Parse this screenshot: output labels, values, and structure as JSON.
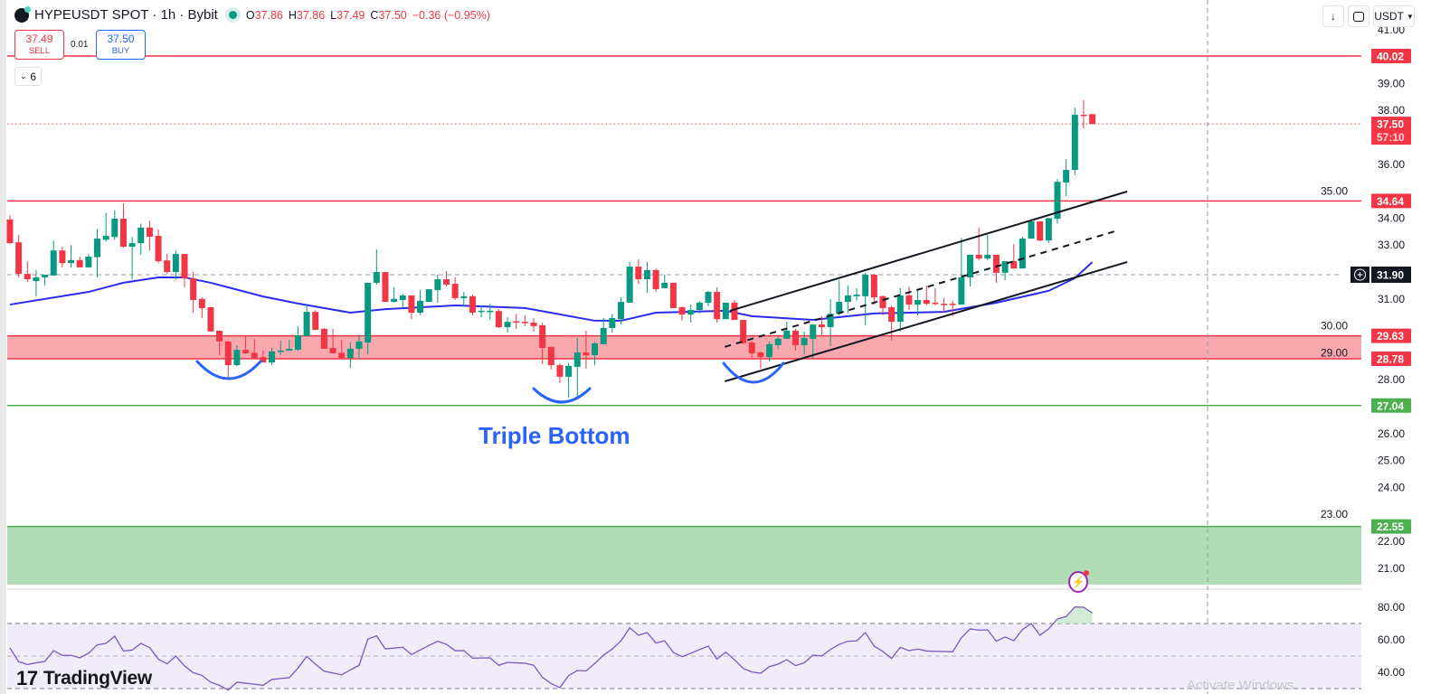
{
  "header": {
    "symbol_title": "HYPEUSDT SPOT · 1h · Bybit",
    "ohlc": {
      "o_label": "O",
      "o": "37.86",
      "h_label": "H",
      "h": "37.86",
      "l_label": "L",
      "l": "37.49",
      "c_label": "C",
      "c": "37.50"
    },
    "change": "−0.36 (−0.95%)"
  },
  "trade": {
    "sell_price": "37.49",
    "sell_label": "SELL",
    "spread": "0.01",
    "buy_price": "37.50",
    "buy_label": "BUY"
  },
  "indicators_toggle": {
    "count": "6",
    "icon": "chevron-down-icon"
  },
  "toolbar": {
    "currency": "USDT",
    "download_icon": "arrow-down-icon",
    "fullscreen_icon": "fullscreen-icon"
  },
  "annotation": {
    "text": "Triple Bottom"
  },
  "branding": {
    "name": "TradingView"
  },
  "watermark": "Activate Windows",
  "colors": {
    "up": "#089981",
    "down": "#f23645",
    "ma": "#2b2bf0",
    "rsi": "#7e57c2",
    "resistance": "#f23645",
    "support": "#4caf50",
    "zone_red": "#f9a8ad",
    "zone_green": "#b2dcb5",
    "arc": "#2962ff"
  },
  "chart_data": {
    "type": "candlestick",
    "price_axis": {
      "ticks": [
        "41.00",
        "39.00",
        "38.00",
        "36.00",
        "35.00",
        "34.00",
        "33.00",
        "31.00",
        "30.00",
        "29.00",
        "28.00",
        "26.00",
        "25.00",
        "24.00",
        "23.00",
        "22.00",
        "21.00"
      ],
      "range": [
        20.4,
        41.0
      ]
    },
    "rsi_axis": {
      "ticks": [
        "80.00",
        "60.00",
        "40.00"
      ],
      "bands": [
        70,
        50,
        30
      ]
    },
    "candles_ohlc": [
      [
        33.95,
        34.1,
        33.05,
        33.07
      ],
      [
        33.1,
        33.38,
        31.8,
        31.93
      ],
      [
        31.93,
        32.4,
        31.63,
        31.73
      ],
      [
        31.66,
        32.07,
        31.1,
        31.8
      ],
      [
        31.8,
        31.9,
        31.5,
        31.9
      ],
      [
        31.87,
        33.17,
        31.85,
        32.8
      ],
      [
        32.8,
        32.94,
        32.17,
        32.33
      ],
      [
        32.33,
        33.0,
        32.17,
        32.44
      ],
      [
        32.44,
        32.57,
        32.17,
        32.17
      ],
      [
        32.17,
        32.67,
        32.17,
        32.57
      ],
      [
        32.55,
        33.6,
        31.8,
        33.24
      ],
      [
        33.2,
        34.2,
        33.13,
        33.34
      ],
      [
        33.3,
        34.28,
        33.2,
        33.98
      ],
      [
        33.98,
        34.55,
        32.9,
        32.94
      ],
      [
        32.94,
        33.3,
        31.73,
        33.07
      ],
      [
        33.07,
        33.8,
        32.64,
        33.65
      ],
      [
        33.65,
        33.9,
        32.8,
        33.31
      ],
      [
        33.34,
        33.58,
        32.33,
        32.4
      ],
      [
        32.43,
        32.67,
        31.93,
        32.0
      ],
      [
        32.0,
        32.8,
        31.73,
        32.67
      ],
      [
        32.67,
        32.67,
        31.43,
        31.76
      ],
      [
        31.76,
        32.0,
        30.49,
        30.96
      ],
      [
        31.0,
        31.06,
        30.29,
        30.66
      ],
      [
        30.69,
        30.69,
        29.79,
        29.79
      ],
      [
        29.82,
        29.82,
        28.91,
        29.42
      ],
      [
        29.42,
        29.42,
        28.07,
        28.54
      ],
      [
        28.54,
        29.28,
        28.5,
        29.11
      ],
      [
        29.11,
        29.65,
        28.95,
        28.98
      ],
      [
        29.0,
        29.52,
        28.8,
        28.81
      ],
      [
        28.84,
        29.08,
        28.64,
        28.64
      ],
      [
        28.64,
        29.18,
        28.54,
        29.05
      ],
      [
        29.05,
        29.45,
        28.91,
        29.08
      ],
      [
        29.08,
        29.48,
        29.08,
        29.15
      ],
      [
        29.11,
        29.99,
        29.08,
        29.65
      ],
      [
        29.62,
        30.82,
        29.62,
        30.52
      ],
      [
        30.52,
        30.59,
        29.85,
        29.85
      ],
      [
        29.89,
        29.92,
        29.15,
        29.15
      ],
      [
        29.18,
        29.89,
        28.98,
        28.98
      ],
      [
        29.0,
        29.48,
        28.81,
        28.81
      ],
      [
        28.81,
        29.38,
        28.44,
        29.15
      ],
      [
        29.15,
        29.68,
        28.78,
        29.42
      ],
      [
        29.38,
        31.6,
        28.95,
        31.6
      ],
      [
        31.6,
        32.84,
        31.53,
        32.0
      ],
      [
        32.0,
        32.0,
        30.89,
        30.89
      ],
      [
        30.89,
        31.43,
        30.86,
        31.0
      ],
      [
        30.96,
        31.2,
        30.66,
        31.13
      ],
      [
        31.13,
        31.13,
        30.25,
        30.49
      ],
      [
        30.49,
        31.33,
        30.4,
        30.93
      ],
      [
        30.89,
        31.36,
        30.89,
        31.36
      ],
      [
        31.33,
        31.9,
        30.86,
        31.73
      ],
      [
        31.73,
        32.03,
        31.46,
        31.53
      ],
      [
        31.56,
        31.8,
        30.96,
        31.03
      ],
      [
        31.03,
        31.26,
        30.73,
        31.1
      ],
      [
        31.1,
        31.16,
        30.39,
        30.49
      ],
      [
        30.55,
        30.76,
        30.32,
        30.56
      ],
      [
        30.55,
        30.82,
        30.22,
        30.56
      ],
      [
        30.55,
        30.62,
        29.92,
        29.95
      ],
      [
        29.95,
        30.32,
        29.75,
        30.15
      ],
      [
        30.17,
        30.45,
        29.89,
        30.13
      ],
      [
        30.15,
        30.39,
        29.99,
        30.12
      ],
      [
        30.12,
        30.29,
        29.79,
        29.99
      ],
      [
        30.02,
        30.12,
        28.58,
        29.18
      ],
      [
        29.22,
        29.22,
        28.38,
        28.54
      ],
      [
        28.54,
        28.61,
        27.87,
        28.11
      ],
      [
        28.11,
        28.61,
        27.34,
        28.51
      ],
      [
        28.48,
        29.55,
        27.34,
        29.01
      ],
      [
        29.01,
        29.82,
        28.41,
        28.91
      ],
      [
        28.91,
        29.4,
        28.54,
        29.35
      ],
      [
        29.32,
        30.29,
        29.32,
        29.92
      ],
      [
        29.92,
        30.45,
        29.75,
        30.29
      ],
      [
        30.25,
        31.06,
        30.05,
        30.89
      ],
      [
        30.86,
        32.37,
        30.86,
        32.2
      ],
      [
        32.2,
        32.47,
        31.56,
        31.73
      ],
      [
        31.73,
        32.37,
        31.23,
        32.07
      ],
      [
        32.07,
        32.13,
        31.26,
        31.36
      ],
      [
        31.4,
        31.9,
        31.4,
        31.6
      ],
      [
        31.6,
        31.6,
        30.66,
        30.66
      ],
      [
        30.69,
        30.72,
        30.19,
        30.42
      ],
      [
        30.42,
        30.79,
        30.12,
        30.59
      ],
      [
        30.59,
        30.93,
        30.46,
        30.86
      ],
      [
        30.86,
        31.3,
        30.72,
        31.26
      ],
      [
        31.26,
        31.43,
        30.12,
        30.25
      ],
      [
        30.25,
        30.86,
        30.25,
        30.86
      ],
      [
        30.86,
        30.96,
        30.22,
        30.22
      ],
      [
        30.22,
        30.22,
        29.32,
        29.35
      ],
      [
        29.38,
        29.45,
        28.78,
        28.98
      ],
      [
        29.01,
        29.05,
        28.41,
        28.84
      ],
      [
        28.84,
        29.42,
        28.68,
        29.32
      ],
      [
        29.28,
        29.62,
        29.12,
        29.52
      ],
      [
        29.52,
        30.15,
        29.52,
        29.82
      ],
      [
        29.82,
        29.89,
        29.08,
        29.28
      ],
      [
        29.28,
        29.79,
        28.95,
        29.55
      ],
      [
        29.52,
        30.05,
        28.78,
        30.05
      ],
      [
        30.05,
        30.35,
        29.62,
        29.95
      ],
      [
        29.95,
        30.99,
        29.25,
        30.45
      ],
      [
        30.45,
        31.7,
        30.39,
        30.89
      ],
      [
        30.89,
        31.5,
        30.46,
        31.13
      ],
      [
        31.1,
        31.4,
        30.93,
        31.16
      ],
      [
        31.1,
        31.97,
        30.02,
        31.9
      ],
      [
        31.9,
        31.93,
        30.79,
        31.06
      ],
      [
        31.1,
        31.13,
        30.39,
        30.66
      ],
      [
        30.69,
        30.76,
        29.45,
        30.15
      ],
      [
        30.15,
        31.4,
        29.79,
        31.13
      ],
      [
        31.13,
        31.46,
        30.59,
        30.79
      ],
      [
        30.79,
        31.33,
        30.39,
        30.96
      ],
      [
        30.96,
        31.5,
        30.76,
        30.82
      ],
      [
        30.86,
        31.4,
        30.76,
        30.82
      ],
      [
        30.82,
        31.03,
        30.49,
        30.8
      ],
      [
        30.82,
        30.93,
        30.36,
        30.8
      ],
      [
        30.79,
        33.27,
        30.79,
        31.8
      ],
      [
        31.8,
        32.64,
        31.46,
        32.64
      ],
      [
        32.64,
        33.65,
        32.44,
        32.5
      ],
      [
        32.5,
        33.38,
        32.44,
        32.64
      ],
      [
        32.64,
        32.64,
        31.6,
        31.97
      ],
      [
        31.97,
        32.4,
        31.7,
        32.4
      ],
      [
        32.4,
        33.04,
        32.13,
        32.13
      ],
      [
        32.13,
        33.3,
        32.13,
        33.24
      ],
      [
        33.24,
        33.88,
        33.24,
        33.88
      ],
      [
        33.88,
        33.88,
        33.14,
        33.17
      ],
      [
        33.17,
        34.0,
        33.07,
        34.0
      ],
      [
        33.98,
        35.45,
        33.8,
        35.35
      ],
      [
        35.32,
        36.19,
        34.81,
        35.79
      ],
      [
        35.79,
        38.1,
        35.6,
        37.84
      ],
      [
        37.84,
        38.38,
        37.33,
        37.8
      ],
      [
        37.86,
        37.86,
        37.49,
        37.5
      ]
    ],
    "moving_average": [
      [
        0,
        30.79
      ],
      [
        9,
        31.26
      ],
      [
        13,
        31.6
      ],
      [
        17,
        31.8
      ],
      [
        20,
        31.8
      ],
      [
        23,
        31.6
      ],
      [
        29,
        31.09
      ],
      [
        33,
        30.83
      ],
      [
        39,
        30.49
      ],
      [
        43,
        30.62
      ],
      [
        51,
        30.76
      ],
      [
        59,
        30.66
      ],
      [
        67,
        30.19
      ],
      [
        70,
        30.19
      ],
      [
        74,
        30.49
      ],
      [
        82,
        30.56
      ],
      [
        85,
        30.36
      ],
      [
        92,
        30.22
      ],
      [
        99,
        30.46
      ],
      [
        107,
        30.52
      ],
      [
        113,
        30.86
      ],
      [
        119,
        31.3
      ],
      [
        122,
        31.77
      ],
      [
        124,
        32.37
      ]
    ],
    "rsi": [
      55,
      46.5,
      44.8,
      45.8,
      46.7,
      53.3,
      50.4,
      50.4,
      48.9,
      51.7,
      56.9,
      57.8,
      62.2,
      53.1,
      53.7,
      57.8,
      55.2,
      48.1,
      45.2,
      50,
      43.9,
      39.8,
      38.1,
      33.9,
      32,
      29.1,
      33.9,
      33.3,
      32.7,
      32,
      35.6,
      36.2,
      36.7,
      42.6,
      49.8,
      45,
      40.7,
      39.6,
      38.5,
      41.5,
      44.3,
      60.4,
      62.4,
      54.4,
      54.9,
      55.4,
      50.9,
      53.7,
      56.5,
      59.1,
      57.2,
      53.3,
      53.3,
      48.7,
      48.8,
      48.9,
      44.3,
      46.1,
      45.8,
      45.6,
      44.3,
      36.9,
      33.1,
      30.6,
      38,
      41.1,
      40.9,
      45.4,
      50.6,
      54.3,
      59.3,
      67.4,
      62.8,
      64.4,
      58,
      59.4,
      52.2,
      49.6,
      51.7,
      54,
      56.1,
      48.1,
      52.4,
      47.8,
      42.4,
      40.2,
      39.4,
      43.5,
      45,
      47.8,
      44.1,
      45.9,
      50.6,
      50,
      54.1,
      57.2,
      59.1,
      59.3,
      64.4,
      56.1,
      52.8,
      48.5,
      55.4,
      53.3,
      54.3,
      53.1,
      52.9,
      52.8,
      52.6,
      61.3,
      66.7,
      65.9,
      66.1,
      59.1,
      61.7,
      59.4,
      66.3,
      70,
      62.8,
      66.7,
      72.8,
      74.3,
      80.2,
      80,
      76.5
    ],
    "horizontal_levels": [
      {
        "price": 40.02,
        "label": "40.02",
        "kind": "resistance"
      },
      {
        "price": 34.64,
        "label": "34.64",
        "kind": "resistance"
      },
      {
        "price": 27.04,
        "label": "27.04",
        "kind": "support"
      }
    ],
    "zones": [
      {
        "top": 29.63,
        "bottom": 28.78,
        "top_label": "29.63",
        "bottom_label": "28.78",
        "kind": "red"
      },
      {
        "top": 22.55,
        "bottom": 20.39,
        "top_label": "22.55",
        "kind": "green"
      }
    ],
    "current_price": {
      "price": 37.5,
      "label": "37.50",
      "countdown": "57:10"
    },
    "crosshair": {
      "price": 31.9,
      "label": "31.90"
    },
    "channel": {
      "upper": [
        [
          82.5,
          30.56
        ],
        [
          128,
          34.99
        ]
      ],
      "middle": [
        [
          81.9,
          29.22
        ],
        [
          127,
          33.55
        ]
      ],
      "lower": [
        [
          81.9,
          27.94
        ],
        [
          128,
          32.37
        ]
      ]
    }
  }
}
